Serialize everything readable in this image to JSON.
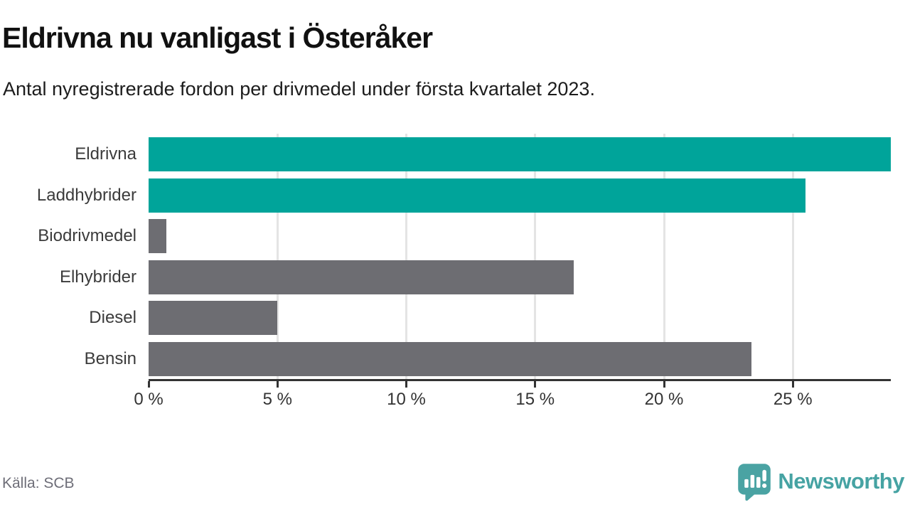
{
  "header": {
    "title": "Eldrivna nu vanligast i Österåker",
    "subtitle": "Antal nyregistrerade fordon per drivmedel under första kvartalet 2023."
  },
  "chart_data": {
    "type": "bar",
    "orientation": "horizontal",
    "title": "Eldrivna nu vanligast i Österåker",
    "subtitle": "Antal nyregistrerade fordon per drivmedel under första kvartalet 2023.",
    "categories": [
      "Eldrivna",
      "Laddhybrider",
      "Biodrivmedel",
      "Elhybrider",
      "Diesel",
      "Bensin"
    ],
    "values": [
      28.8,
      25.5,
      0.7,
      16.5,
      5.0,
      23.4
    ],
    "bar_colors": [
      "#00a49a",
      "#00a49a",
      "#6d6d72",
      "#6d6d72",
      "#6d6d72",
      "#6d6d72"
    ],
    "xlabel": "",
    "ylabel": "",
    "xlim": [
      0,
      28.8
    ],
    "xticks": [
      0,
      5,
      10,
      15,
      20,
      25
    ],
    "xtick_labels": [
      "0 %",
      "5 %",
      "10 %",
      "15 %",
      "20 %",
      "25 %"
    ],
    "grid": "vertical-only",
    "legend": "none"
  },
  "footer": {
    "source": "Källa: SCB",
    "brand": "Newsworthy"
  },
  "colors": {
    "accent_teal": "#00a49a",
    "bar_gray": "#6d6d72",
    "brand_teal": "#46a3a3",
    "grid": "#e4e4e4",
    "axis": "#333333"
  }
}
